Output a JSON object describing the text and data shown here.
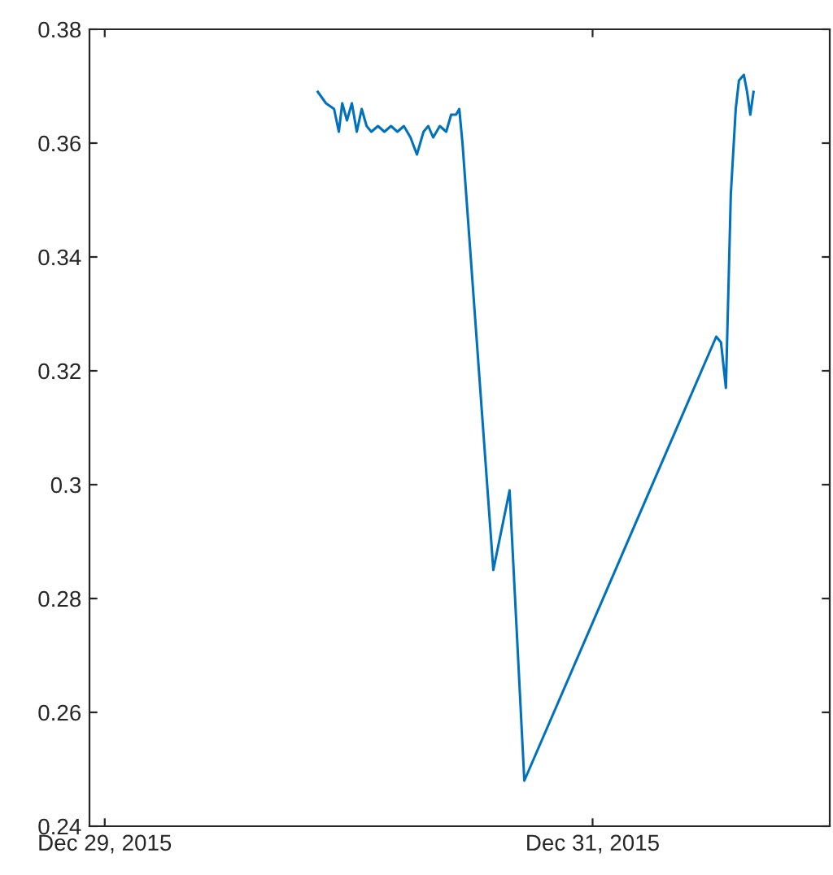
{
  "chart_data": {
    "type": "line",
    "grid": false,
    "xlim": [
      "2015-12-28T22:30",
      "2015-12-31T23:20"
    ],
    "xticks": [
      {
        "value": "2015-12-29",
        "label": "Dec 29, 2015"
      },
      {
        "value": "2015-12-31",
        "label": "Dec 31, 2015"
      }
    ],
    "ylim": [
      0.24,
      0.38
    ],
    "yticks": [
      0.24,
      0.26,
      0.28,
      0.3,
      0.32,
      0.34,
      0.36,
      0.38
    ],
    "series": [
      {
        "color": "#0072bd",
        "x": [
          "2015-12-29T20:58",
          "2015-12-29T21:46",
          "2015-12-29T22:34",
          "2015-12-29T23:02",
          "2015-12-29T23:22",
          "2015-12-29T23:50",
          "2015-12-30T00:19",
          "2015-12-30T00:48",
          "2015-12-30T01:17",
          "2015-12-30T01:46",
          "2015-12-30T02:14",
          "2015-12-30T02:53",
          "2015-12-30T03:31",
          "2015-12-30T04:10",
          "2015-12-30T04:48",
          "2015-12-30T05:26",
          "2015-12-30T06:05",
          "2015-12-30T06:43",
          "2015-12-30T07:22",
          "2015-12-30T07:50",
          "2015-12-30T08:19",
          "2015-12-30T08:58",
          "2015-12-30T09:36",
          "2015-12-30T10:05",
          "2015-12-30T10:34",
          "2015-12-30T10:53",
          "2015-12-30T11:12",
          "2015-12-30T14:14",
          "2015-12-30T15:50",
          "2015-12-30T17:17",
          "2015-12-31T12:10",
          "2015-12-31T12:38",
          "2015-12-31T13:07",
          "2015-12-31T13:36",
          "2015-12-31T14:05",
          "2015-12-31T14:24",
          "2015-12-31T14:53",
          "2015-12-31T15:12",
          "2015-12-31T15:31",
          "2015-12-31T15:50"
        ],
        "values": [
          0.369,
          0.367,
          0.366,
          0.362,
          0.367,
          0.364,
          0.367,
          0.362,
          0.366,
          0.363,
          0.362,
          0.363,
          0.362,
          0.363,
          0.362,
          0.363,
          0.361,
          0.358,
          0.362,
          0.363,
          0.361,
          0.363,
          0.362,
          0.365,
          0.365,
          0.366,
          0.36,
          0.285,
          0.299,
          0.248,
          0.326,
          0.325,
          0.317,
          0.351,
          0.366,
          0.371,
          0.372,
          0.369,
          0.365,
          0.369
        ]
      }
    ]
  }
}
